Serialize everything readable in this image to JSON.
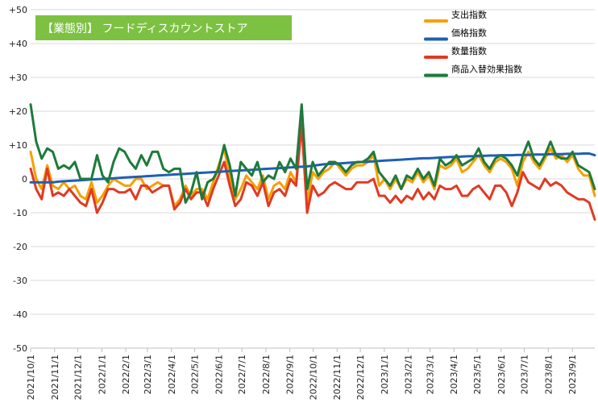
{
  "chart_data": {
    "type": "line",
    "title": "【業態別】 フードディスカウントストア",
    "title_bg_color": "#7dc142",
    "ylim": [
      -50,
      50
    ],
    "y_ticks": [
      "+50",
      "+40",
      "+30",
      "+20",
      "+10",
      "0",
      "-10",
      "-20",
      "-30",
      "-40",
      "-50"
    ],
    "x_ticks": [
      "2021/10/1",
      "2021/11/1",
      "2021/12/1",
      "2022/1/1",
      "2022/2/1",
      "2022/3/1",
      "2022/4/1",
      "2022/5/1",
      "2022/6/1",
      "2022/7/1",
      "2022/8/1",
      "2022/9/1",
      "2022/10/1",
      "2022/11/1",
      "2022/12/1",
      "2023/1/1",
      "2023/2/1",
      "2023/3/1",
      "2023/4/1",
      "2023/5/1",
      "2023/6/1",
      "2023/7/1",
      "2023/8/1",
      "2023/9/1"
    ],
    "x_start": "2021-10-01",
    "x_end": "2023-09-30",
    "grid": true,
    "legend_position": "top-right",
    "series": [
      {
        "name": "支出指数",
        "color": "#f5a000",
        "values": [
          8,
          0,
          -3,
          4,
          -2,
          -3,
          -1,
          -3,
          -2,
          -5,
          -6,
          -1,
          -7,
          -5,
          -2,
          0,
          -1,
          -2,
          -2,
          0,
          0,
          -3,
          -2,
          -1,
          -2,
          -2,
          -8,
          -6,
          -2,
          -5,
          -3,
          -3,
          -6,
          -1,
          4,
          9,
          0,
          -6,
          -3,
          1,
          -1,
          -3,
          1,
          -6,
          -2,
          -1,
          -3,
          2,
          -1,
          19,
          -7,
          2,
          0,
          2,
          3,
          5,
          3,
          1,
          3,
          4,
          4,
          5,
          7,
          -2,
          0,
          -3,
          0,
          -3,
          0,
          -1,
          2,
          -1,
          1,
          -3,
          4,
          3,
          4,
          6,
          2,
          3,
          5,
          7,
          4,
          2,
          5,
          6,
          5,
          3,
          -2,
          5,
          8,
          5,
          3,
          6,
          9,
          6,
          7,
          5,
          7,
          3,
          1,
          1,
          -5
        ]
      },
      {
        "name": "価格指数",
        "color": "#1f5fb4",
        "values": [
          -1,
          -1,
          -1,
          -1,
          -1,
          -0.8,
          -0.7,
          -0.6,
          -0.5,
          -0.4,
          -0.3,
          -0.2,
          -0.1,
          0,
          0.1,
          0.2,
          0.3,
          0.4,
          0.5,
          0.6,
          0.7,
          0.8,
          0.9,
          1,
          1.1,
          1.2,
          1.3,
          1.4,
          1.5,
          1.6,
          1.7,
          1.8,
          1.9,
          2,
          2.1,
          2.2,
          2.3,
          2.4,
          2.5,
          2.6,
          2.7,
          2.8,
          2.9,
          3,
          3.1,
          3.2,
          3.3,
          3.4,
          3.5,
          3.6,
          3.7,
          3.9,
          4.1,
          4.3,
          4.4,
          4.5,
          4.6,
          4.7,
          4.8,
          4.9,
          5,
          5.1,
          5.2,
          5.3,
          5.4,
          5.5,
          5.6,
          5.7,
          5.8,
          5.9,
          6,
          6.1,
          6.1,
          6.2,
          6.3,
          6.4,
          6.5,
          6.5,
          6.6,
          6.7,
          6.7,
          6.8,
          6.8,
          6.9,
          6.9,
          7,
          7,
          7,
          7.1,
          7.1,
          7.1,
          7.2,
          7.2,
          7.2,
          7.3,
          7.3,
          7.3,
          7.4,
          7.4,
          7.4,
          7.5,
          7.5,
          7
        ]
      },
      {
        "name": "数量指数",
        "color": "#e03a24",
        "values": [
          3,
          -3,
          -6,
          3,
          -5,
          -4,
          -5,
          -3,
          -5,
          -7,
          -8,
          -3,
          -10,
          -7,
          -3,
          -3,
          -4,
          -4,
          -3,
          -6,
          -2,
          -2,
          -4,
          -3,
          -2,
          -2,
          -9,
          -7,
          -3,
          -6,
          -4,
          -4,
          -8,
          -3,
          1,
          5,
          -2,
          -8,
          -6,
          -1,
          -2,
          -5,
          -1,
          -8,
          -4,
          -3,
          -5,
          0,
          -2,
          16,
          -10,
          -2,
          -5,
          -4,
          -2,
          -1,
          -2,
          -3,
          -3,
          -1,
          -1,
          -1,
          0,
          -5,
          -5,
          -7,
          -5,
          -7,
          -5,
          -6,
          -3,
          -6,
          -4,
          -6,
          -2,
          -3,
          -3,
          -2,
          -5,
          -5,
          -3,
          -2,
          -4,
          -6,
          -2,
          -2,
          -4,
          -8,
          -4,
          2,
          -1,
          -2,
          -3,
          0,
          -2,
          -1,
          -2,
          -4,
          -5,
          -6,
          -6,
          -7,
          -12
        ]
      },
      {
        "name": "商品入替効果指数",
        "color": "#1e7a3c",
        "values": [
          22,
          11,
          6,
          9,
          8,
          3,
          4,
          3,
          5,
          0,
          0,
          0,
          7,
          1,
          -1,
          5,
          9,
          8,
          5,
          3,
          7,
          4,
          8,
          8,
          3,
          2,
          3,
          3,
          -7,
          -4,
          2,
          -6,
          -1,
          0,
          3,
          10,
          4,
          -5,
          5,
          3,
          1,
          5,
          -1,
          1,
          0,
          5,
          2,
          6,
          3,
          22,
          -3,
          5,
          1,
          3,
          5,
          5,
          4,
          2,
          4,
          5,
          5,
          6,
          8,
          2,
          0,
          -2,
          1,
          -3,
          1,
          0,
          3,
          0,
          2,
          -2,
          6,
          4,
          5,
          7,
          4,
          5,
          6,
          9,
          5,
          3,
          6,
          7,
          6,
          4,
          1,
          7,
          11,
          6,
          4,
          7,
          11,
          7,
          6,
          6,
          8,
          4,
          3,
          2,
          -3
        ]
      }
    ]
  }
}
